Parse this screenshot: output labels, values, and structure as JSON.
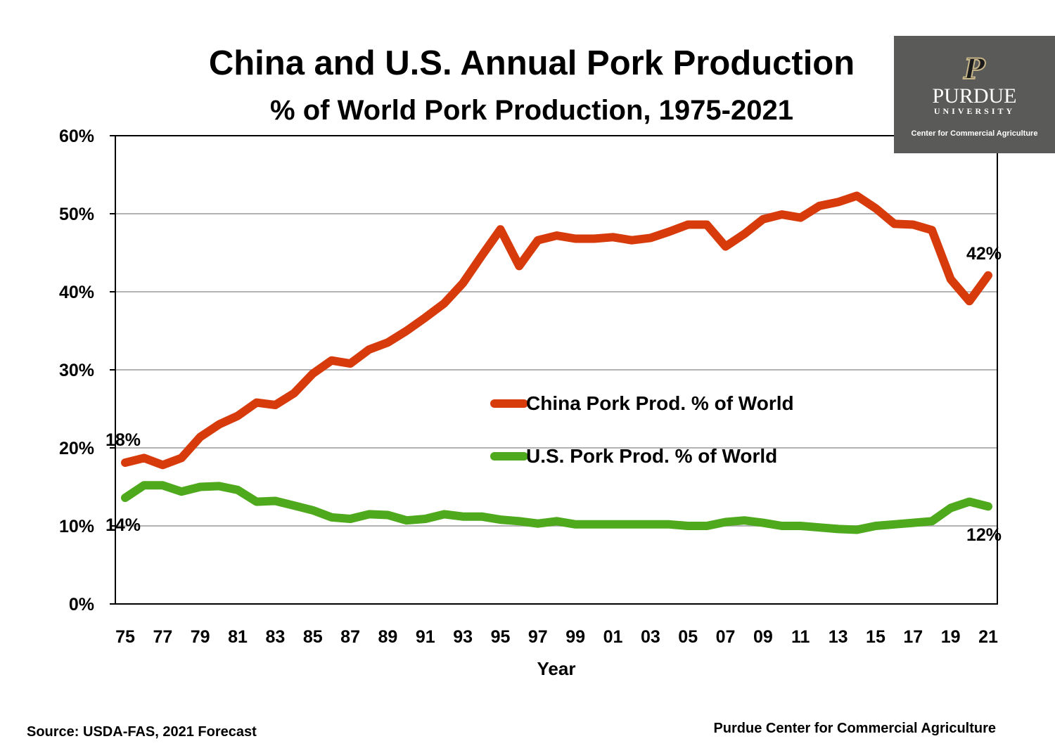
{
  "chart_data": {
    "type": "line",
    "title": "China and U.S. Annual Pork Production",
    "subtitle": "% of World Pork Production, 1975-2021",
    "xlabel": "Year",
    "ylabel": "",
    "ylim": [
      0,
      60
    ],
    "y_ticks": [
      "0%",
      "10%",
      "20%",
      "30%",
      "40%",
      "50%",
      "60%"
    ],
    "x_tick_labels": [
      "75",
      "77",
      "79",
      "81",
      "83",
      "85",
      "87",
      "89",
      "91",
      "93",
      "95",
      "97",
      "99",
      "01",
      "03",
      "05",
      "07",
      "09",
      "11",
      "13",
      "15",
      "17",
      "19",
      "21"
    ],
    "x": [
      1975,
      1976,
      1977,
      1978,
      1979,
      1980,
      1981,
      1982,
      1983,
      1984,
      1985,
      1986,
      1987,
      1988,
      1989,
      1990,
      1991,
      1992,
      1993,
      1994,
      1995,
      1996,
      1997,
      1998,
      1999,
      2000,
      2001,
      2002,
      2003,
      2004,
      2005,
      2006,
      2007,
      2008,
      2009,
      2010,
      2011,
      2012,
      2013,
      2014,
      2015,
      2016,
      2017,
      2018,
      2019,
      2020,
      2021
    ],
    "grid": true,
    "legend_position": "center-right",
    "series": [
      {
        "name": "China Pork Prod. % of World",
        "color": "#d83b0b",
        "values": [
          18.1,
          18.7,
          17.8,
          18.7,
          21.4,
          23.0,
          24.1,
          25.8,
          25.5,
          27.0,
          29.5,
          31.2,
          30.8,
          32.6,
          33.5,
          35.0,
          36.7,
          38.5,
          41.1,
          44.6,
          48.0,
          43.3,
          46.6,
          47.2,
          46.8,
          46.8,
          47.0,
          46.6,
          46.9,
          47.7,
          48.6,
          48.6,
          45.8,
          47.4,
          49.3,
          49.9,
          49.5,
          51.0,
          51.5,
          52.3,
          50.7,
          48.7,
          48.6,
          47.9,
          41.6,
          38.8,
          42.1
        ]
      },
      {
        "name": "U.S. Pork Prod. % of World",
        "color": "#4ea91c",
        "values": [
          13.6,
          15.2,
          15.2,
          14.4,
          15.0,
          15.1,
          14.6,
          13.1,
          13.2,
          12.6,
          12.0,
          11.1,
          10.9,
          11.5,
          11.4,
          10.7,
          10.9,
          11.5,
          11.2,
          11.2,
          10.8,
          10.6,
          10.3,
          10.6,
          10.2,
          10.2,
          10.2,
          10.2,
          10.2,
          10.2,
          10.0,
          10.0,
          10.5,
          10.7,
          10.4,
          10.0,
          10.0,
          9.8,
          9.6,
          9.5,
          10.0,
          10.2,
          10.4,
          10.6,
          12.3,
          13.1,
          12.5
        ]
      }
    ],
    "annotations": {
      "china_start": "18%",
      "china_end": "42%",
      "us_start": "14%",
      "us_end": "12%"
    }
  },
  "footer": {
    "source": "Source: USDA-FAS, 2021 Forecast",
    "credit": "Purdue Center for Commercial Agriculture"
  },
  "logo": {
    "mark": "P",
    "name": "PURDUE",
    "sub": "UNIVERSITY",
    "center": "Center for Commercial Agriculture"
  }
}
